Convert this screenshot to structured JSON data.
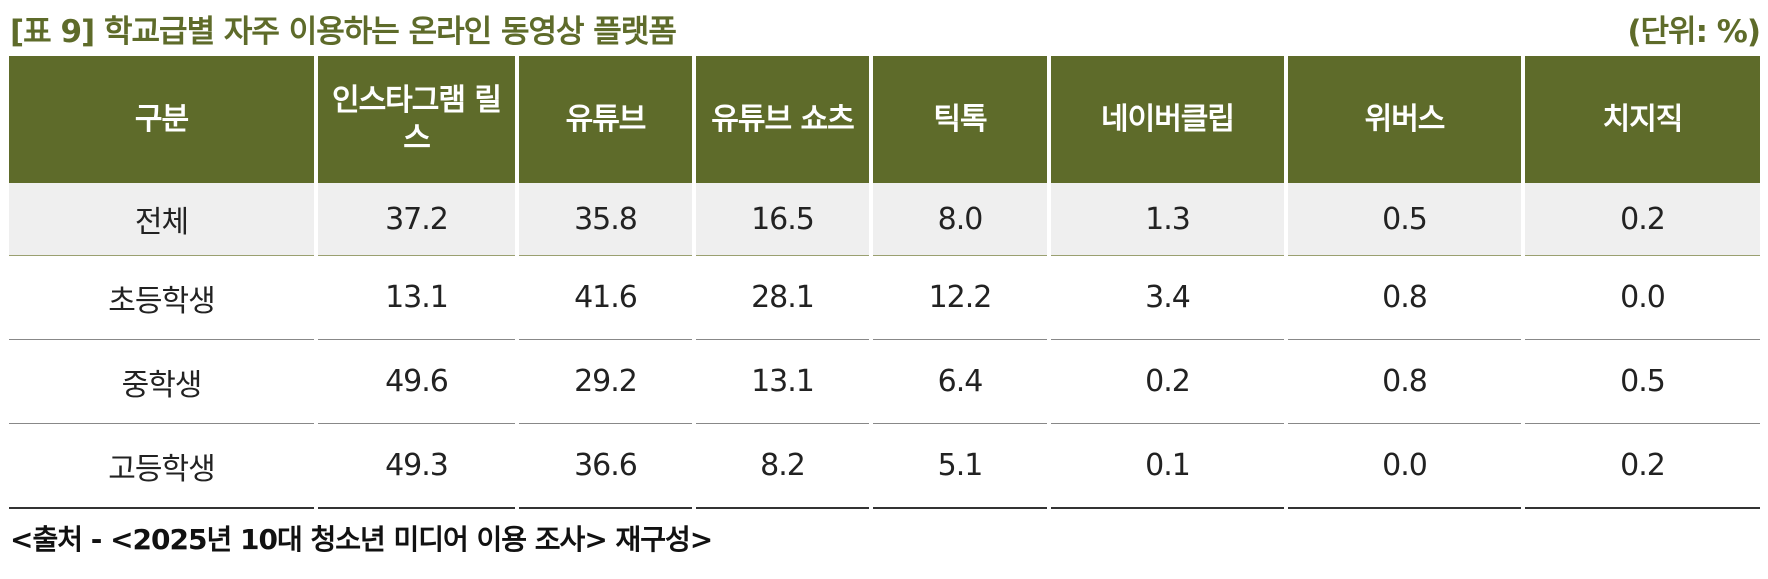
{
  "header": {
    "title": "[표 9] 학교급별 자주 이용하는 온라인 동영상 플랫폼",
    "unit": "(단위: %)"
  },
  "table": {
    "columns": [
      "구분",
      "인스타그램 릴스",
      "유튜브",
      "유튜브 쇼츠",
      "틱톡",
      "네이버클립",
      "위버스",
      "치지직"
    ],
    "rows": [
      [
        "전체",
        "37.2",
        "35.8",
        "16.5",
        "8.0",
        "1.3",
        "0.5",
        "0.2"
      ],
      [
        "초등학생",
        "13.1",
        "41.6",
        "28.1",
        "12.2",
        "3.4",
        "0.8",
        "0.0"
      ],
      [
        "중학생",
        "49.6",
        "29.2",
        "13.1",
        "6.4",
        "0.2",
        "0.8",
        "0.5"
      ],
      [
        "고등학생",
        "49.3",
        "36.6",
        "8.2",
        "5.1",
        "0.1",
        "0.0",
        "0.2"
      ]
    ]
  },
  "footer": {
    "source": "<출처 - <2025년 10대 청소년 미디어 이용 조사> 재구성>"
  }
}
